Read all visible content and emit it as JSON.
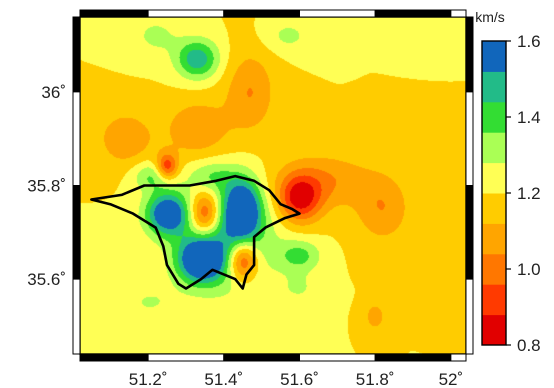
{
  "chart_data": {
    "type": "heatmap",
    "title": "",
    "x_ticks": [
      "51.2˚",
      "51.4˚",
      "51.6˚",
      "51.8˚",
      "52˚"
    ],
    "x_tick_values": [
      51.2,
      51.4,
      51.6,
      51.8,
      52.0
    ],
    "y_ticks": [
      "36˚",
      "35.8˚",
      "35.6˚"
    ],
    "y_tick_values": [
      36.0,
      35.8,
      35.6
    ],
    "xlim": [
      51.02,
      52.04
    ],
    "ylim": [
      35.44,
      36.16
    ],
    "colorbar": {
      "unit": "km/s",
      "range": [
        0.8,
        1.6
      ],
      "tick_values": [
        0.8,
        1.0,
        1.2,
        1.4,
        1.6
      ],
      "tick_labels": [
        "0.8",
        "1.0",
        "1.2",
        "1.4",
        "1.6"
      ],
      "colors": [
        "#e10000",
        "#ff3a00",
        "#ff7700",
        "#ffa500",
        "#ffcc00",
        "#ffff55",
        "#aaff55",
        "#33dd33",
        "#22bb88",
        "#1166bb"
      ]
    },
    "background_value": 1.2,
    "features": [
      {
        "lon": 51.25,
        "lat": 35.74,
        "value": 1.62,
        "sx": 0.04,
        "sy": 0.032
      },
      {
        "lon": 51.35,
        "lat": 35.74,
        "value": 0.82,
        "sx": 0.03,
        "sy": 0.034
      },
      {
        "lon": 51.45,
        "lat": 35.75,
        "value": 1.62,
        "sx": 0.034,
        "sy": 0.044
      },
      {
        "lon": 51.34,
        "lat": 35.64,
        "value": 1.64,
        "sx": 0.042,
        "sy": 0.032
      },
      {
        "lon": 51.45,
        "lat": 35.64,
        "value": 0.82,
        "sx": 0.028,
        "sy": 0.03
      },
      {
        "lon": 51.4,
        "lat": 35.69,
        "value": 1.45,
        "sx": 0.09,
        "sy": 0.08
      },
      {
        "lon": 51.21,
        "lat": 35.82,
        "value": 1.37,
        "sx": 0.035,
        "sy": 0.022
      },
      {
        "lon": 51.37,
        "lat": 35.82,
        "value": 1.33,
        "sx": 0.045,
        "sy": 0.024
      },
      {
        "lon": 51.6,
        "lat": 35.77,
        "value": 0.86,
        "sx": 0.04,
        "sy": 0.035
      },
      {
        "lon": 51.66,
        "lat": 35.81,
        "value": 1.04,
        "sx": 0.09,
        "sy": 0.04
      },
      {
        "lon": 51.82,
        "lat": 35.75,
        "value": 1.05,
        "sx": 0.05,
        "sy": 0.05
      },
      {
        "lon": 51.25,
        "lat": 35.84,
        "value": 0.88,
        "sx": 0.02,
        "sy": 0.02
      },
      {
        "lon": 51.14,
        "lat": 35.9,
        "value": 1.05,
        "sx": 0.05,
        "sy": 0.04
      },
      {
        "lon": 51.33,
        "lat": 35.92,
        "value": 1.05,
        "sx": 0.06,
        "sy": 0.045
      },
      {
        "lon": 51.47,
        "lat": 36.0,
        "value": 1.04,
        "sx": 0.045,
        "sy": 0.06
      },
      {
        "lon": 51.33,
        "lat": 36.07,
        "value": 1.5,
        "sx": 0.04,
        "sy": 0.03
      },
      {
        "lon": 51.22,
        "lat": 36.12,
        "value": 1.3,
        "sx": 0.045,
        "sy": 0.03
      },
      {
        "lon": 51.57,
        "lat": 36.12,
        "value": 1.3,
        "sx": 0.045,
        "sy": 0.025
      },
      {
        "lon": 51.91,
        "lat": 36.14,
        "value": 1.28,
        "sx": 0.04,
        "sy": 0.02
      },
      {
        "lon": 51.6,
        "lat": 35.65,
        "value": 1.38,
        "sx": 0.04,
        "sy": 0.024
      },
      {
        "lon": 51.8,
        "lat": 35.52,
        "value": 1.06,
        "sx": 0.018,
        "sy": 0.02
      },
      {
        "lon": 51.6,
        "lat": 35.58,
        "value": 1.28,
        "sx": 0.04,
        "sy": 0.025
      },
      {
        "lon": 51.2,
        "lat": 35.55,
        "value": 1.28,
        "sx": 0.06,
        "sy": 0.03
      }
    ],
    "boundary_outline": [
      [
        51.05,
        35.77
      ],
      [
        51.13,
        35.78
      ],
      [
        51.19,
        35.8
      ],
      [
        51.25,
        35.8
      ],
      [
        51.31,
        35.8
      ],
      [
        51.38,
        35.81
      ],
      [
        51.43,
        35.82
      ],
      [
        51.48,
        35.81
      ],
      [
        51.52,
        35.79
      ],
      [
        51.55,
        35.76
      ],
      [
        51.58,
        35.75
      ],
      [
        51.6,
        35.74
      ],
      [
        51.56,
        35.73
      ],
      [
        51.51,
        35.71
      ],
      [
        51.48,
        35.69
      ],
      [
        51.48,
        35.66
      ],
      [
        51.48,
        35.63
      ],
      [
        51.46,
        35.61
      ],
      [
        51.45,
        35.58
      ],
      [
        51.43,
        35.6
      ],
      [
        51.4,
        35.61
      ],
      [
        51.37,
        35.62
      ],
      [
        51.34,
        35.6
      ],
      [
        51.3,
        35.58
      ],
      [
        51.28,
        35.59
      ],
      [
        51.25,
        35.63
      ],
      [
        51.24,
        35.67
      ],
      [
        51.22,
        35.71
      ],
      [
        51.16,
        35.74
      ],
      [
        51.1,
        35.76
      ],
      [
        51.05,
        35.77
      ]
    ]
  }
}
